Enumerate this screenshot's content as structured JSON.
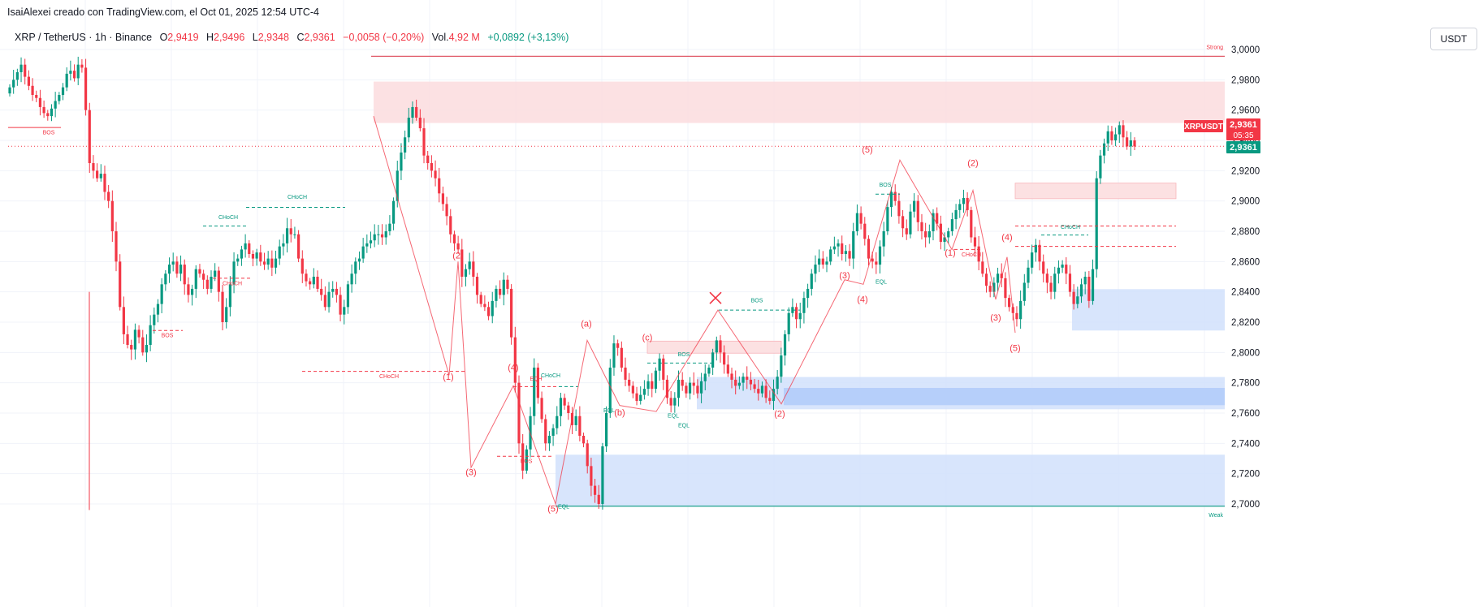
{
  "header": {
    "credit": "IsaiAlexei creado con TradingView.com, el Oct 01, 2025 12:54 UTC-4"
  },
  "legend": {
    "symbol": "XRP / TetherUS · 1h · Binance",
    "o_label": "O",
    "o": "2,9419",
    "h_label": "H",
    "h": "2,9496",
    "l_label": "L",
    "l": "2,9348",
    "c_label": "C",
    "c": "2,9361",
    "change": "−0,0058 (−0,20%)",
    "vol_label": "Vol.",
    "vol": "4,92 M",
    "vol_change": "+0,0892 (+3,13%)"
  },
  "currency_button": "USDT",
  "price_axis": {
    "ticks": [
      "3,0000",
      "2,9800",
      "2,9600",
      "2,9400",
      "2,9200",
      "2,9000",
      "2,8800",
      "2,8600",
      "2,8400",
      "2,8200",
      "2,8000",
      "2,7800",
      "2,7600",
      "2,7400",
      "2,7200",
      "2,7000"
    ],
    "symbol_tag": "XRPUSDT",
    "price_tag": "2,9361",
    "countdown": "05:35",
    "last_price": "2,9361"
  },
  "colors": {
    "up": "#089981",
    "down": "#f23645",
    "supply_zone": "#fcdcde",
    "demand_zone": "#d1e0fc",
    "demand_zone_strong": "#b3ccf9",
    "grid": "#f0f3fa"
  },
  "annotations": {
    "strong_label": "Strong",
    "weak_label": "Weak",
    "structure_labels": [
      {
        "text": "BOS",
        "color": "down"
      },
      {
        "text": "CHoCH",
        "color": "up"
      },
      {
        "text": "CHoCH",
        "color": "up"
      },
      {
        "text": "BOS",
        "color": "down"
      },
      {
        "text": "CHoCH",
        "color": "down"
      },
      {
        "text": "CHoCH",
        "color": "down"
      },
      {
        "text": "EQH",
        "color": "down"
      },
      {
        "text": "CHoCH",
        "color": "up"
      },
      {
        "text": "BOS",
        "color": "down"
      },
      {
        "text": "EQL",
        "color": "up"
      },
      {
        "text": "EQL",
        "color": "up"
      },
      {
        "text": "BOS",
        "color": "up"
      },
      {
        "text": "EQL",
        "color": "up"
      },
      {
        "text": "BOS",
        "color": "up"
      },
      {
        "text": "BOS",
        "color": "up"
      },
      {
        "text": "EQL",
        "color": "up"
      },
      {
        "text": "CHoCH",
        "color": "down"
      },
      {
        "text": "CHoCH",
        "color": "up"
      },
      {
        "text": "EQL",
        "color": "up"
      }
    ],
    "wave_labels": [
      "(2)",
      "(1)",
      "(3)",
      "(4)",
      "(5)",
      "(a)",
      "(b)",
      "(c)",
      "(2)",
      "(3)",
      "(4)",
      "(5)",
      "(1)",
      "(2)",
      "(3)",
      "(4)",
      "(5)"
    ]
  },
  "chart_data": {
    "type": "candlestick",
    "symbol": "XRP / TetherUS",
    "interval": "1h",
    "exchange": "Binance",
    "ylim": [
      2.6985,
      3.0045
    ],
    "last_close": 2.9361,
    "zones": [
      {
        "kind": "supply",
        "top": 2.9788,
        "bottom": 2.9515
      },
      {
        "kind": "supply",
        "top": 2.9118,
        "bottom": 2.9015
      },
      {
        "kind": "supply",
        "top": 2.8075,
        "bottom": 2.7995
      },
      {
        "kind": "demand",
        "top": 2.8418,
        "bottom": 2.8145
      },
      {
        "kind": "demand",
        "top": 2.7838,
        "bottom": 2.7625
      },
      {
        "kind": "demand",
        "top": 2.7325,
        "bottom": 2.6985
      }
    ],
    "strong_high": 2.9955,
    "weak_low": 2.6985,
    "closes": [
      2.975,
      2.98,
      2.985,
      2.99,
      2.982,
      2.976,
      2.97,
      2.968,
      2.962,
      2.958,
      2.956,
      2.961,
      2.966,
      2.97,
      2.975,
      2.984,
      2.986,
      2.981,
      2.99,
      2.988,
      2.96,
      2.925,
      2.92,
      2.915,
      2.918,
      2.906,
      2.9,
      2.88,
      2.86,
      2.83,
      2.812,
      2.805,
      2.802,
      2.815,
      2.81,
      2.8,
      2.805,
      2.818,
      2.825,
      2.832,
      2.845,
      2.852,
      2.858,
      2.86,
      2.852,
      2.858,
      2.845,
      2.838,
      2.842,
      2.855,
      2.852,
      2.848,
      2.842,
      2.85,
      2.854,
      2.84,
      2.82,
      2.83,
      2.845,
      2.86,
      2.862,
      2.868,
      2.872,
      2.865,
      2.862,
      2.866,
      2.86,
      2.858,
      2.862,
      2.856,
      2.862,
      2.87,
      2.872,
      2.882,
      2.878,
      2.878,
      2.862,
      2.852,
      2.847,
      2.845,
      2.85,
      2.842,
      2.838,
      2.83,
      2.84,
      2.842,
      2.838,
      2.825,
      2.83,
      2.845,
      2.852,
      2.86,
      2.862,
      2.87,
      2.872,
      2.874,
      2.878,
      2.878,
      2.876,
      2.88,
      2.885,
      2.9,
      2.92,
      2.932,
      2.942,
      2.955,
      2.962,
      2.955,
      2.948,
      2.93,
      2.925,
      2.92,
      2.915,
      2.905,
      2.898,
      2.89,
      2.878,
      2.872,
      2.868,
      2.85,
      2.855,
      2.86,
      2.85,
      2.838,
      2.832,
      2.83,
      2.824,
      2.834,
      2.842,
      2.838,
      2.848,
      2.842,
      2.81,
      2.78,
      2.74,
      2.722,
      2.736,
      2.758,
      2.79,
      2.77,
      2.756,
      2.74,
      2.745,
      2.75,
      2.758,
      2.77,
      2.765,
      2.76,
      2.752,
      2.758,
      2.745,
      2.74,
      2.725,
      2.712,
      2.706,
      2.7,
      2.738,
      2.76,
      2.79,
      2.806,
      2.803,
      2.79,
      2.782,
      2.778,
      2.773,
      2.768,
      2.772,
      2.776,
      2.781,
      2.776,
      2.788,
      2.796,
      2.782,
      2.77,
      2.765,
      2.77,
      2.782,
      2.778,
      2.773,
      2.78,
      2.778,
      2.773,
      2.781,
      2.786,
      2.79,
      2.8,
      2.808,
      2.8,
      2.792,
      2.786,
      2.782,
      2.778,
      2.78,
      2.784,
      2.782,
      2.779,
      2.776,
      2.773,
      2.778,
      2.77,
      2.768,
      2.776,
      2.784,
      2.798,
      2.812,
      2.826,
      2.83,
      2.822,
      2.826,
      2.836,
      2.842,
      2.852,
      2.858,
      2.862,
      2.858,
      2.86,
      2.868,
      2.87,
      2.872,
      2.865,
      2.867,
      2.862,
      2.88,
      2.892,
      2.885,
      2.875,
      2.862,
      2.86,
      2.858,
      2.87,
      2.88,
      2.896,
      2.906,
      2.9,
      2.89,
      2.882,
      2.878,
      2.893,
      2.9,
      2.886,
      2.88,
      2.876,
      2.88,
      2.892,
      2.885,
      2.873,
      2.876,
      2.88,
      2.888,
      2.894,
      2.898,
      2.902,
      2.894,
      2.876,
      2.87,
      2.86,
      2.852,
      2.844,
      2.84,
      2.846,
      2.852,
      2.849,
      2.836,
      2.83,
      2.826,
      2.822,
      2.834,
      2.846,
      2.856,
      2.866,
      2.871,
      2.86,
      2.852,
      2.846,
      2.84,
      2.852,
      2.856,
      2.858,
      2.852,
      2.84,
      2.832,
      2.837,
      2.845,
      2.85,
      2.834,
      2.855,
      2.915,
      2.93,
      2.938,
      2.946,
      2.94,
      2.944,
      2.95,
      2.942,
      2.936,
      2.94,
      2.936
    ]
  }
}
